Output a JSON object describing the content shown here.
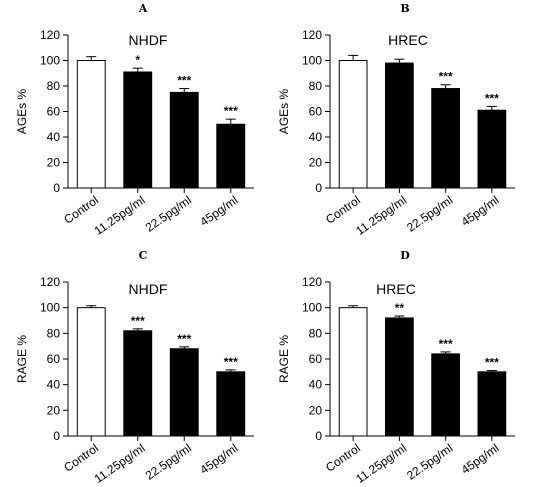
{
  "chart_data": [
    {
      "type": "bar",
      "panel": "A",
      "title": "NHDF",
      "ylabel": "AGEs %",
      "ylim": [
        0,
        120
      ],
      "yticks": [
        0,
        20,
        40,
        60,
        80,
        100,
        120
      ],
      "categories": [
        "Control",
        "11.25pg/ml",
        "22.5pg/ml",
        "45pg/ml"
      ],
      "values": [
        100,
        91,
        75,
        50
      ],
      "errors": [
        3,
        3,
        3,
        4
      ],
      "significance": [
        "",
        "*",
        "***",
        "***"
      ],
      "fills": [
        "#ffffff",
        "#000000",
        "#000000",
        "#000000"
      ]
    },
    {
      "type": "bar",
      "panel": "B",
      "title": "HREC",
      "ylabel": "AGEs %",
      "ylim": [
        0,
        120
      ],
      "yticks": [
        0,
        20,
        40,
        60,
        80,
        100,
        120
      ],
      "categories": [
        "Control",
        "11.25pg/ml",
        "22.5pg/ml",
        "45pg/ml"
      ],
      "values": [
        100,
        98,
        78,
        61
      ],
      "errors": [
        4,
        3,
        3,
        3
      ],
      "significance": [
        "",
        "",
        "***",
        "***"
      ],
      "fills": [
        "#ffffff",
        "#000000",
        "#000000",
        "#000000"
      ]
    },
    {
      "type": "bar",
      "panel": "C",
      "title": "NHDF",
      "ylabel": "RAGE %",
      "ylim": [
        0,
        120
      ],
      "yticks": [
        0,
        20,
        40,
        60,
        80,
        100,
        120
      ],
      "categories": [
        "Control",
        "11.25pg/ml",
        "22.5pg/ml",
        "45pg/ml"
      ],
      "values": [
        100,
        82,
        68,
        50
      ],
      "errors": [
        1.5,
        1.5,
        1.5,
        1.5
      ],
      "significance": [
        "",
        "***",
        "***",
        "***"
      ],
      "fills": [
        "#ffffff",
        "#000000",
        "#000000",
        "#000000"
      ]
    },
    {
      "type": "bar",
      "panel": "D",
      "title": "HREC",
      "ylabel": "RAGE %",
      "ylim": [
        0,
        120
      ],
      "yticks": [
        0,
        20,
        40,
        60,
        80,
        100,
        120
      ],
      "categories": [
        "Control",
        "11.25pg/ml",
        "22.5pg/ml",
        "45pg/ml"
      ],
      "values": [
        100,
        92,
        64,
        50
      ],
      "errors": [
        1.5,
        1.5,
        1.5,
        1
      ],
      "significance": [
        "",
        "**",
        "***",
        "***"
      ],
      "fills": [
        "#ffffff",
        "#000000",
        "#000000",
        "#000000"
      ]
    }
  ]
}
